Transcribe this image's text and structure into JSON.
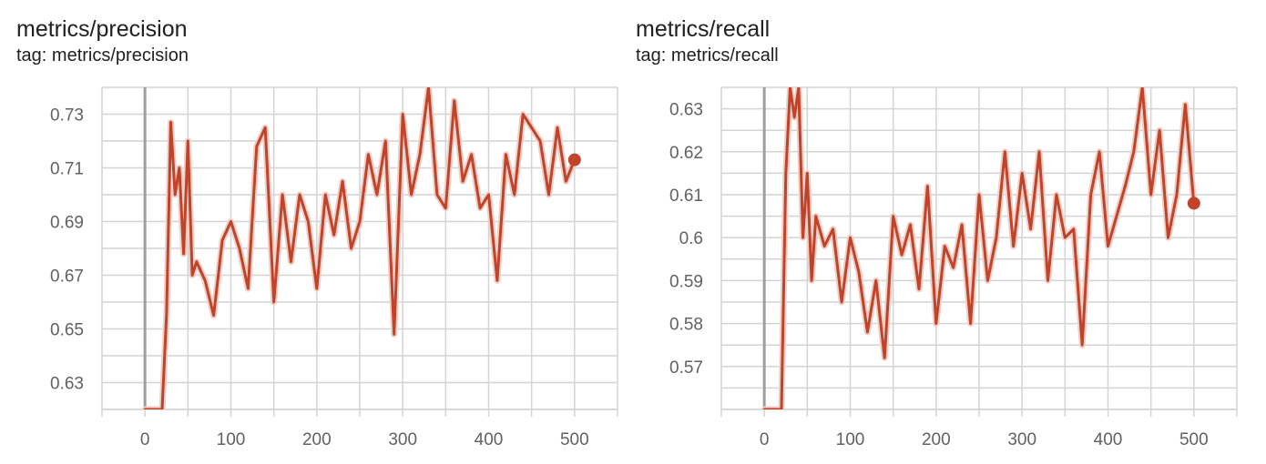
{
  "colors": {
    "series": "#c0432a",
    "series_faint": "#efd0c8",
    "grid": "#d4d4d4",
    "zero_line": "#9e9e9e",
    "text": "#212121",
    "tick_text": "#616161"
  },
  "charts": [
    {
      "title": "metrics/precision",
      "tag": "tag: metrics/precision"
    },
    {
      "title": "metrics/recall",
      "tag": "tag: metrics/recall"
    }
  ],
  "chart_data": [
    {
      "type": "line",
      "title": "metrics/precision",
      "subtitle": "tag: metrics/precision",
      "xlabel": "",
      "ylabel": "",
      "xlim": [
        -50,
        550
      ],
      "ylim": [
        0.62,
        0.74
      ],
      "x_ticks": [
        0,
        100,
        200,
        300,
        400,
        500
      ],
      "x_tick_labels": [
        "0",
        "100",
        "200",
        "300",
        "400",
        "500"
      ],
      "y_ticks": [
        0.63,
        0.65,
        0.67,
        0.69,
        0.71,
        0.73
      ],
      "y_tick_labels": [
        "0.63",
        "0.65",
        "0.67",
        "0.69",
        "0.71",
        "0.73"
      ],
      "grid": true,
      "x": [
        0,
        20,
        25,
        30,
        35,
        40,
        45,
        50,
        55,
        60,
        70,
        80,
        90,
        100,
        110,
        120,
        130,
        140,
        150,
        160,
        170,
        180,
        190,
        200,
        210,
        220,
        230,
        240,
        250,
        260,
        270,
        280,
        290,
        300,
        310,
        320,
        330,
        340,
        350,
        360,
        370,
        380,
        390,
        400,
        410,
        420,
        430,
        440,
        450,
        460,
        470,
        480,
        490,
        500
      ],
      "series": [
        {
          "values": [
            0.62,
            0.62,
            0.655,
            0.727,
            0.7,
            0.71,
            0.678,
            0.72,
            0.67,
            0.675,
            0.668,
            0.655,
            0.683,
            0.69,
            0.68,
            0.665,
            0.718,
            0.725,
            0.66,
            0.7,
            0.675,
            0.7,
            0.69,
            0.665,
            0.7,
            0.685,
            0.705,
            0.68,
            0.69,
            0.715,
            0.7,
            0.72,
            0.648,
            0.73,
            0.7,
            0.715,
            0.74,
            0.7,
            0.695,
            0.735,
            0.705,
            0.715,
            0.695,
            0.7,
            0.668,
            0.715,
            0.7,
            0.73,
            0.725,
            0.72,
            0.7,
            0.725,
            0.705,
            0.713
          ]
        }
      ]
    },
    {
      "type": "line",
      "title": "metrics/recall",
      "subtitle": "tag: metrics/recall",
      "xlabel": "",
      "ylabel": "",
      "xlim": [
        -50,
        550
      ],
      "ylim": [
        0.56,
        0.635
      ],
      "x_ticks": [
        0,
        100,
        200,
        300,
        400,
        500
      ],
      "x_tick_labels": [
        "0",
        "100",
        "200",
        "300",
        "400",
        "500"
      ],
      "y_ticks": [
        0.57,
        0.58,
        0.59,
        0.6,
        0.61,
        0.62,
        0.63
      ],
      "y_tick_labels": [
        "0.57",
        "0.58",
        "0.59",
        "0.6",
        "0.61",
        "0.62",
        "0.63"
      ],
      "grid": true,
      "x": [
        0,
        20,
        25,
        30,
        35,
        40,
        45,
        50,
        55,
        60,
        70,
        80,
        90,
        100,
        110,
        120,
        130,
        140,
        150,
        160,
        170,
        180,
        190,
        200,
        210,
        220,
        230,
        240,
        250,
        260,
        270,
        280,
        290,
        300,
        310,
        320,
        330,
        340,
        350,
        360,
        370,
        380,
        390,
        400,
        410,
        420,
        430,
        440,
        450,
        460,
        470,
        480,
        490,
        500
      ],
      "series": [
        {
          "values": [
            0.56,
            0.56,
            0.615,
            0.635,
            0.628,
            0.635,
            0.6,
            0.615,
            0.59,
            0.605,
            0.598,
            0.602,
            0.585,
            0.6,
            0.592,
            0.578,
            0.59,
            0.572,
            0.605,
            0.596,
            0.603,
            0.588,
            0.612,
            0.58,
            0.598,
            0.593,
            0.603,
            0.58,
            0.61,
            0.59,
            0.6,
            0.62,
            0.598,
            0.615,
            0.602,
            0.62,
            0.59,
            0.61,
            0.6,
            0.602,
            0.575,
            0.61,
            0.62,
            0.598,
            0.605,
            0.612,
            0.62,
            0.635,
            0.61,
            0.625,
            0.6,
            0.61,
            0.631,
            0.608
          ]
        }
      ]
    }
  ]
}
